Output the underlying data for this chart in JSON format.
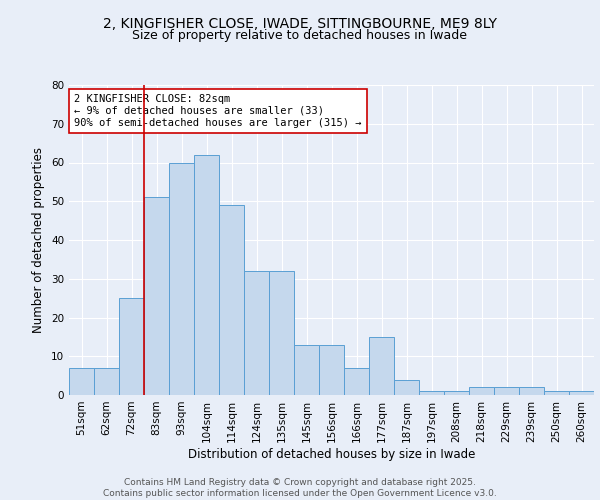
{
  "title": "2, KINGFISHER CLOSE, IWADE, SITTINGBOURNE, ME9 8LY",
  "subtitle": "Size of property relative to detached houses in Iwade",
  "xlabel": "Distribution of detached houses by size in Iwade",
  "ylabel": "Number of detached properties",
  "categories": [
    "51sqm",
    "62sqm",
    "72sqm",
    "83sqm",
    "93sqm",
    "104sqm",
    "114sqm",
    "124sqm",
    "135sqm",
    "145sqm",
    "156sqm",
    "166sqm",
    "177sqm",
    "187sqm",
    "197sqm",
    "208sqm",
    "218sqm",
    "229sqm",
    "239sqm",
    "250sqm",
    "260sqm"
  ],
  "values": [
    7,
    7,
    25,
    51,
    60,
    62,
    49,
    32,
    32,
    13,
    13,
    7,
    15,
    4,
    1,
    1,
    2,
    2,
    2,
    1,
    1
  ],
  "bar_color": "#c5d8ed",
  "bar_edge_color": "#5a9fd4",
  "vline_index": 2.5,
  "vline_color": "#cc0000",
  "annotation_text": "2 KINGFISHER CLOSE: 82sqm\n← 9% of detached houses are smaller (33)\n90% of semi-detached houses are larger (315) →",
  "annotation_box_color": "#ffffff",
  "annotation_box_edge": "#cc0000",
  "ylim": [
    0,
    80
  ],
  "yticks": [
    0,
    10,
    20,
    30,
    40,
    50,
    60,
    70,
    80
  ],
  "background_color": "#e8eef8",
  "plot_bg_color": "#e8eef8",
  "grid_color": "#ffffff",
  "footer": "Contains HM Land Registry data © Crown copyright and database right 2025.\nContains public sector information licensed under the Open Government Licence v3.0.",
  "title_fontsize": 10,
  "subtitle_fontsize": 9,
  "axis_label_fontsize": 8.5,
  "tick_fontsize": 7.5,
  "annotation_fontsize": 7.5,
  "footer_fontsize": 6.5
}
